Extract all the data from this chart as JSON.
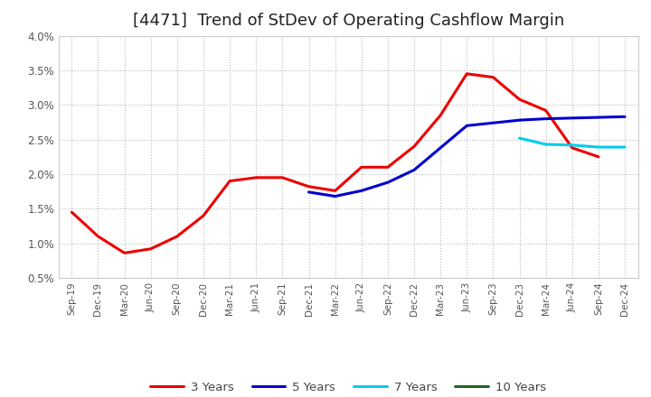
{
  "title": "[4471]  Trend of StDev of Operating Cashflow Margin",
  "title_fontsize": 13,
  "ylim": [
    0.005,
    0.04
  ],
  "yticks": [
    0.005,
    0.01,
    0.015,
    0.02,
    0.025,
    0.03,
    0.035,
    0.04
  ],
  "ytick_labels": [
    "0.5%",
    "1.0%",
    "1.5%",
    "2.0%",
    "2.5%",
    "3.0%",
    "3.5%",
    "4.0%"
  ],
  "xtick_labels": [
    "Sep-19",
    "Dec-19",
    "Mar-20",
    "Jun-20",
    "Sep-20",
    "Dec-20",
    "Mar-21",
    "Jun-21",
    "Sep-21",
    "Dec-21",
    "Mar-22",
    "Jun-22",
    "Sep-22",
    "Dec-22",
    "Mar-23",
    "Jun-23",
    "Sep-23",
    "Dec-23",
    "Mar-24",
    "Jun-24",
    "Sep-24",
    "Dec-24"
  ],
  "background_color": "#ffffff",
  "plot_bg_color": "#ffffff",
  "grid_color": "#bbbbbb",
  "series_order": [
    "3 Years",
    "5 Years",
    "7 Years",
    "10 Years"
  ],
  "series": {
    "3 Years": {
      "color": "#ee0000",
      "linewidth": 2.2,
      "x_indices": [
        0,
        1,
        2,
        3,
        4,
        5,
        6,
        7,
        8,
        9,
        10,
        11,
        12,
        13,
        14,
        15,
        16,
        17,
        18,
        19,
        20
      ],
      "y": [
        0.0145,
        0.011,
        0.0086,
        0.0092,
        0.011,
        0.014,
        0.019,
        0.0195,
        0.0195,
        0.0182,
        0.0176,
        0.021,
        0.021,
        0.024,
        0.0285,
        0.0345,
        0.034,
        0.0308,
        0.0292,
        0.0238,
        0.0225
      ]
    },
    "5 Years": {
      "color": "#0000cc",
      "linewidth": 2.2,
      "x_indices": [
        9,
        10,
        11,
        12,
        13,
        14,
        15,
        16,
        17,
        18,
        19,
        20,
        21
      ],
      "y": [
        0.0174,
        0.0168,
        0.0176,
        0.0188,
        0.0206,
        0.0238,
        0.027,
        0.0274,
        0.0278,
        0.028,
        0.0281,
        0.0282,
        0.0283
      ]
    },
    "7 Years": {
      "color": "#00ccee",
      "linewidth": 2.2,
      "x_indices": [
        17,
        18,
        19,
        20,
        21
      ],
      "y": [
        0.0252,
        0.0243,
        0.0242,
        0.0239,
        0.0239
      ]
    },
    "10 Years": {
      "color": "#226622",
      "linewidth": 2.2,
      "x_indices": [],
      "y": []
    }
  },
  "legend_labels": [
    "3 Years",
    "5 Years",
    "7 Years",
    "10 Years"
  ],
  "legend_colors": [
    "#ee0000",
    "#0000cc",
    "#00ccee",
    "#226622"
  ]
}
